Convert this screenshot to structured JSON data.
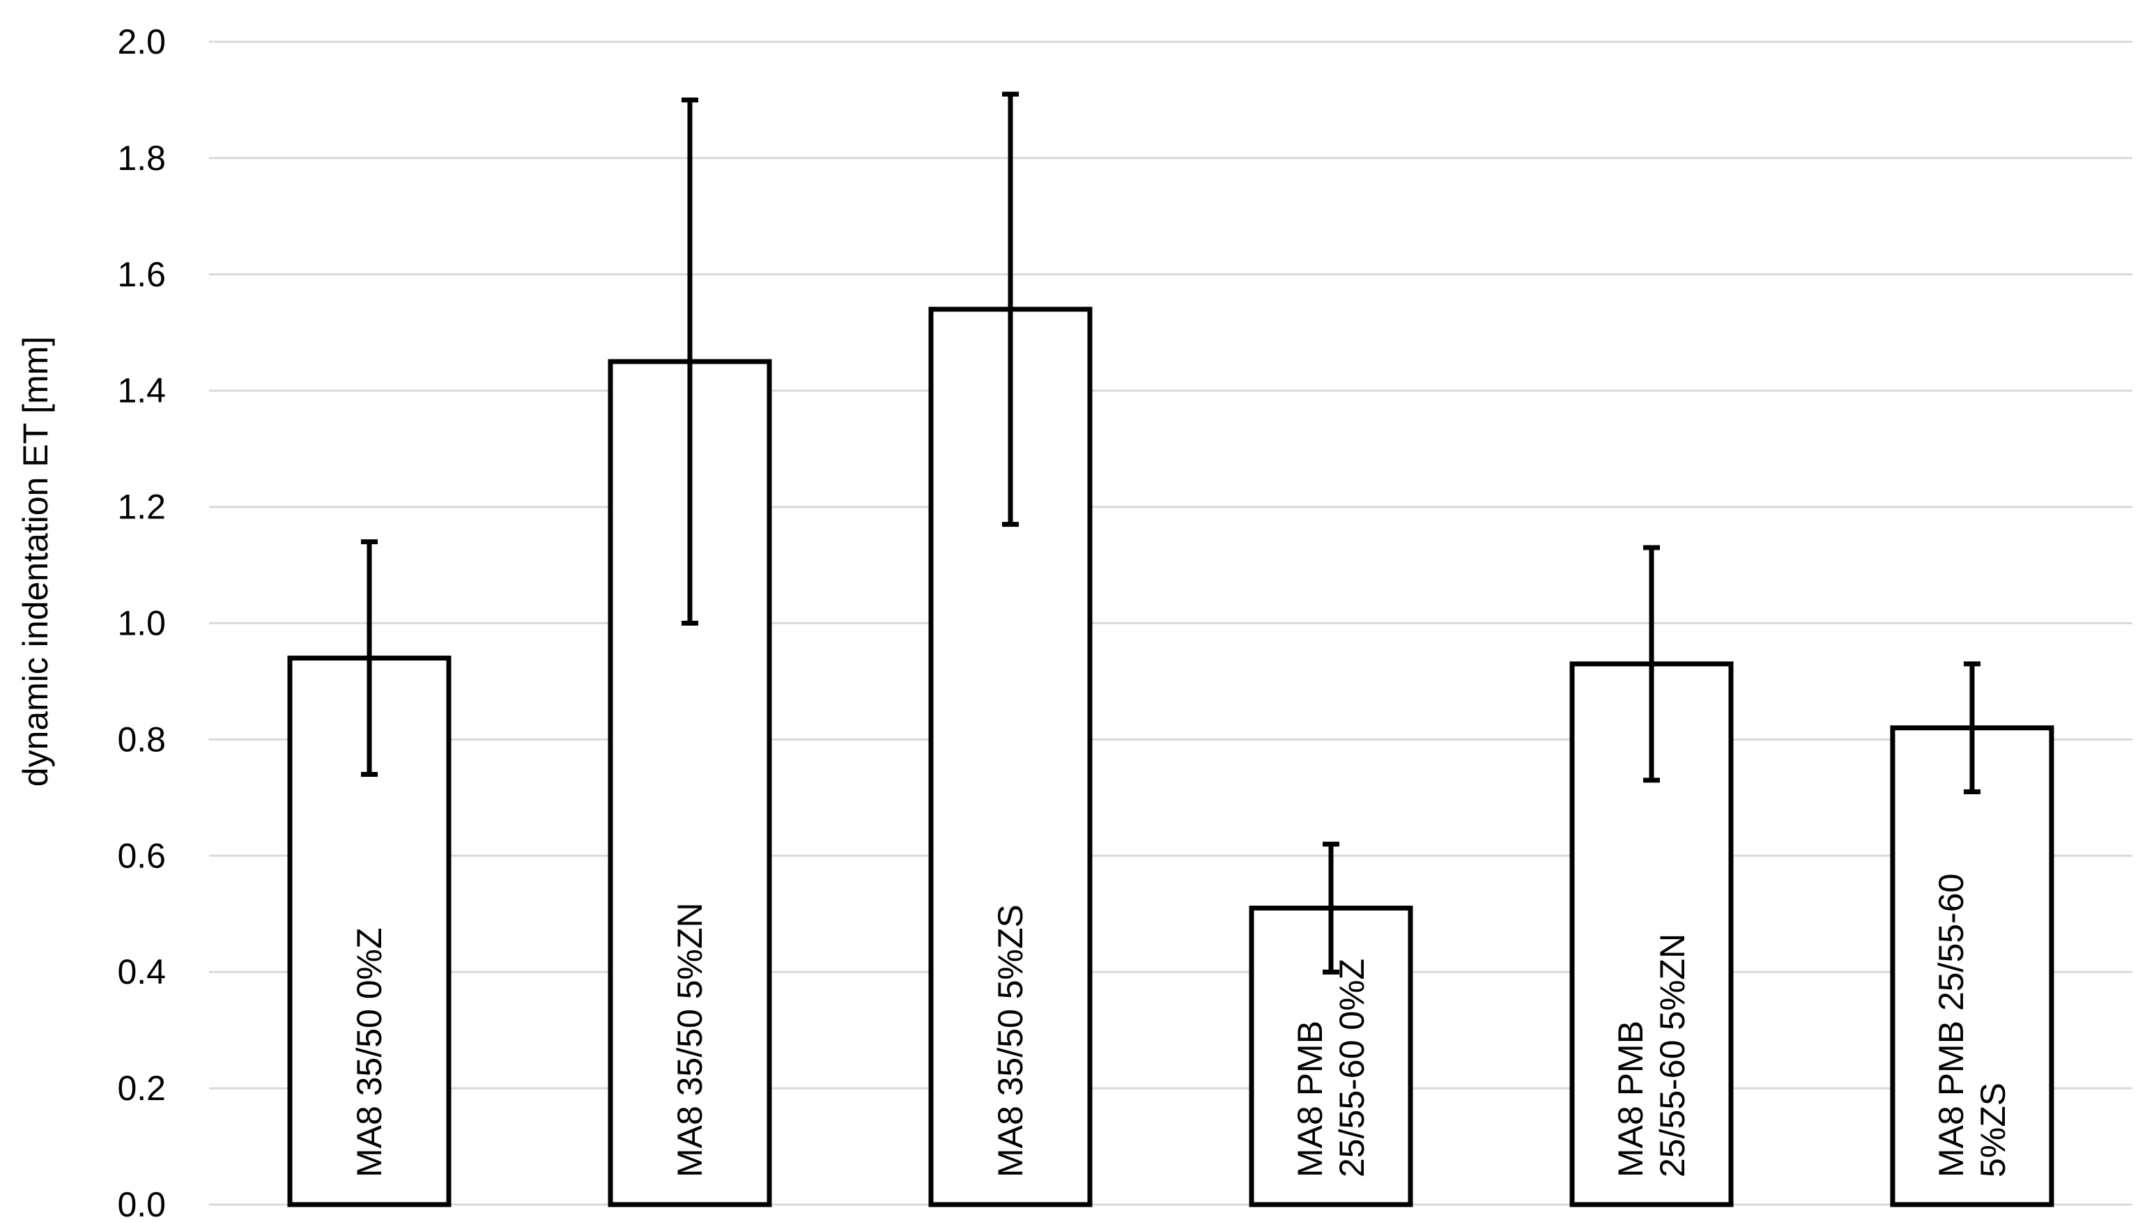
{
  "chart_data": {
    "type": "bar",
    "title": "",
    "xlabel": "",
    "ylabel": "dynamic indentation ET  [mm]",
    "ylim": [
      0,
      2.0
    ],
    "yticks": [
      "0.0",
      "0.2",
      "0.4",
      "0.6",
      "0.8",
      "1.0",
      "1.2",
      "1.4",
      "1.6",
      "1.8",
      "2.0"
    ],
    "grid": true,
    "legend": "none",
    "categories": [
      [
        "MA8 35/50 0%Z"
      ],
      [
        "MA8 35/50 5%ZN"
      ],
      [
        "MA8 35/50 5%ZS"
      ],
      [
        "MA8 PMB",
        "25/55-60 0%Z"
      ],
      [
        "MA8 PMB",
        "25/55-60 5%ZN"
      ],
      [
        "MA8 PMB 25/55-60",
        "5%ZS"
      ]
    ],
    "values": [
      0.94,
      1.45,
      1.54,
      0.51,
      0.93,
      0.82
    ],
    "error_low": [
      0.74,
      1.0,
      1.17,
      0.4,
      0.73,
      0.71
    ],
    "error_high": [
      1.14,
      1.9,
      1.91,
      0.62,
      1.13,
      0.93
    ],
    "colors": {
      "bar_fill": "#ffffff",
      "bar_stroke": "#000000",
      "grid": "#d9d9d9",
      "error_bar": "#000000"
    }
  }
}
